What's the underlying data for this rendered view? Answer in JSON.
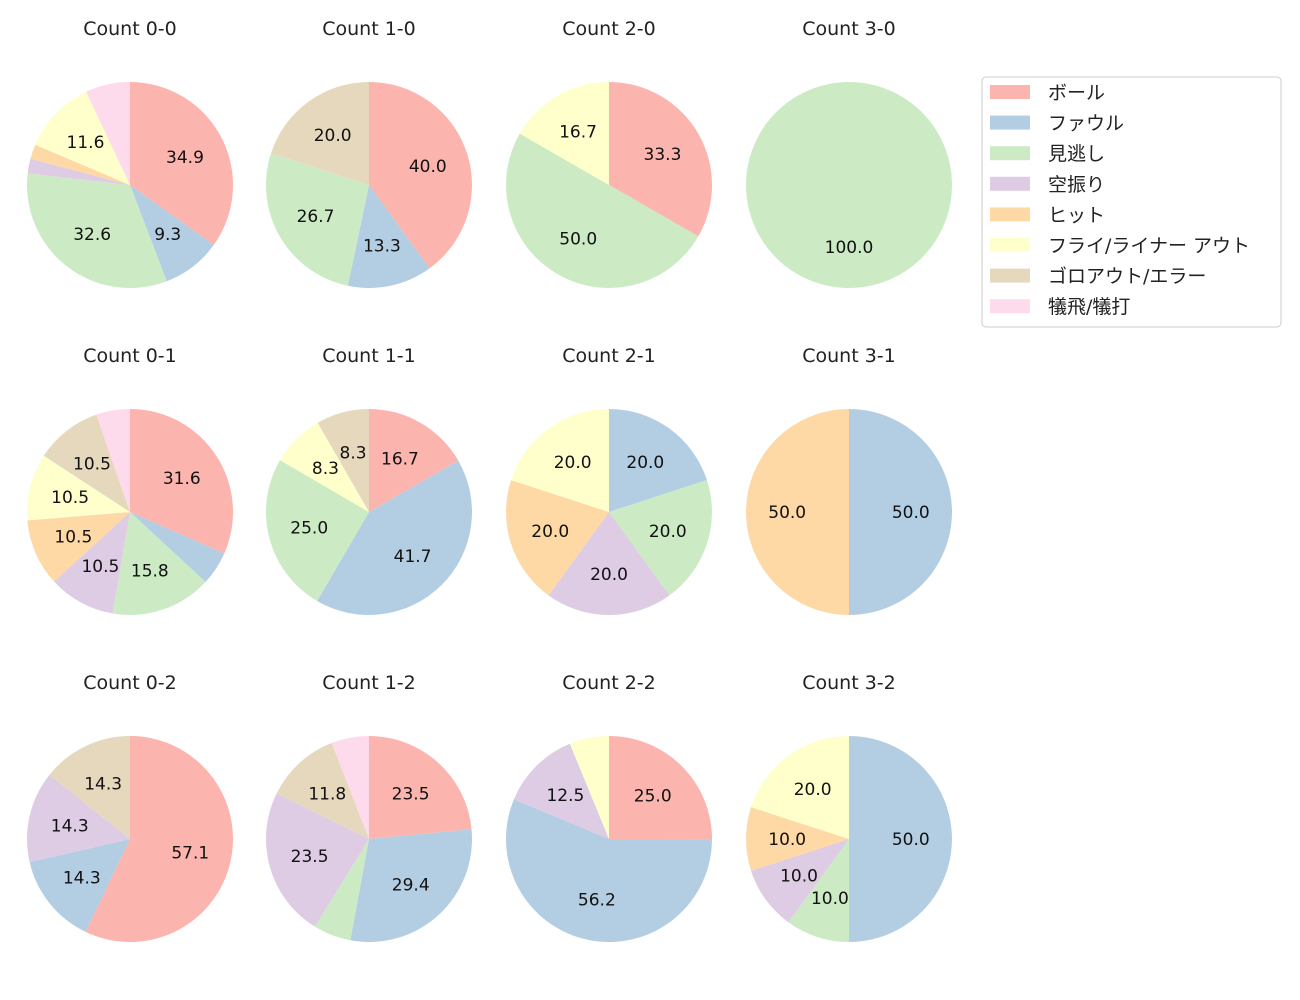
{
  "chart_data": {
    "type": "pie",
    "legend_position": "top-right",
    "categories": [
      "ボール",
      "ファウル",
      "見逃し",
      "空振り",
      "ヒット",
      "フライ/ライナー アウト",
      "ゴロアウト/エラー",
      "犠飛/犠打"
    ],
    "colors": [
      "#fbb4ae",
      "#b3cde3",
      "#ccebc5",
      "#decbe4",
      "#fed9a6",
      "#ffffcc",
      "#e5d8bd",
      "#fddaec"
    ],
    "label_threshold_percent": 8,
    "charts": [
      {
        "title": "Count 0-0",
        "values": [
          34.9,
          9.3,
          32.6,
          2.3,
          2.3,
          11.6,
          0,
          7.0
        ]
      },
      {
        "title": "Count 1-0",
        "values": [
          40.0,
          13.3,
          26.7,
          0,
          0,
          0,
          20.0,
          0
        ]
      },
      {
        "title": "Count 2-0",
        "values": [
          33.3,
          0,
          50.0,
          0,
          0,
          16.7,
          0,
          0
        ]
      },
      {
        "title": "Count 3-0",
        "values": [
          0,
          0,
          100.0,
          0,
          0,
          0,
          0,
          0
        ]
      },
      {
        "title": "Count 0-1",
        "values": [
          31.6,
          5.3,
          15.8,
          10.5,
          10.5,
          10.5,
          10.5,
          5.3
        ]
      },
      {
        "title": "Count 1-1",
        "values": [
          16.7,
          41.7,
          25.0,
          0,
          0,
          8.3,
          8.3,
          0
        ]
      },
      {
        "title": "Count 2-1",
        "values": [
          0,
          20.0,
          20.0,
          20.0,
          20.0,
          20.0,
          0,
          0
        ]
      },
      {
        "title": "Count 3-1",
        "values": [
          0,
          50.0,
          0,
          0,
          50.0,
          0,
          0,
          0
        ]
      },
      {
        "title": "Count 0-2",
        "values": [
          57.1,
          14.3,
          0,
          14.3,
          0,
          0,
          14.3,
          0
        ]
      },
      {
        "title": "Count 1-2",
        "values": [
          23.5,
          29.4,
          5.9,
          23.5,
          0,
          0,
          11.8,
          5.9
        ]
      },
      {
        "title": "Count 2-2",
        "values": [
          25.0,
          56.2,
          0,
          12.5,
          0,
          6.2,
          0,
          0
        ]
      },
      {
        "title": "Count 3-2",
        "values": [
          0,
          50.0,
          10.0,
          10.0,
          10.0,
          20.0,
          0,
          0
        ]
      }
    ]
  }
}
